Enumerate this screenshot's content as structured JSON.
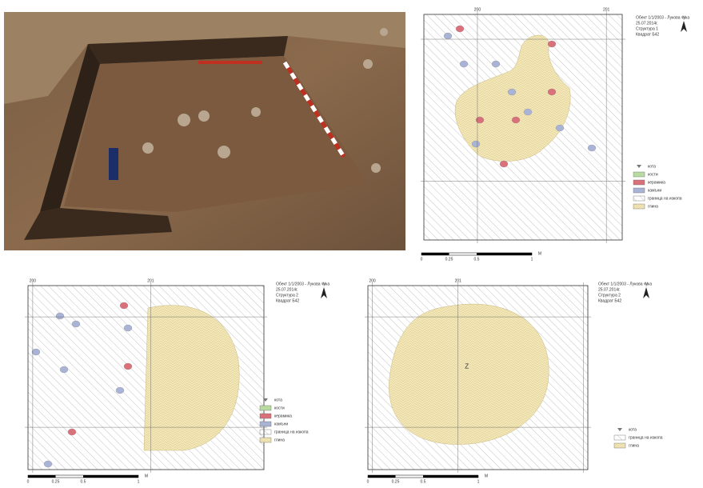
{
  "plans": [
    {
      "header": [
        "Обект 1/1/2003 - Лукова чука",
        "25.07.2014г.",
        "Структура 1",
        "Квадрат Б42"
      ],
      "grid_labels": [
        "200",
        "201"
      ],
      "north": "N",
      "legend": [
        "кота",
        "кости",
        "керамика",
        "камъни",
        "граница на изкопа",
        "глина"
      ],
      "scale": [
        "0",
        "0.25",
        "0.5",
        "1",
        "М"
      ]
    },
    {
      "header": [
        "Обект 1/1/2003 - Лукова чука",
        "25.07.2014г.",
        "Структура 2",
        "Квадрат Б42"
      ],
      "grid_labels": [
        "200",
        "201"
      ],
      "north": "N",
      "legend": [
        "кота",
        "кости",
        "керамика",
        "камъни",
        "граница на изкопа",
        "глина"
      ],
      "scale": [
        "0",
        "0.25",
        "0.5",
        "1",
        "М"
      ]
    },
    {
      "header": [
        "Обект 1/1/2003 - Лукова чука",
        "25.07.2014г.",
        "Структура 2",
        "Квадрат Б42"
      ],
      "grid_labels": [
        "200",
        "201"
      ],
      "north": "N",
      "center_label": "Z",
      "legend": [
        "кота",
        "граница на изкопа",
        "глина"
      ],
      "scale": [
        "0",
        "0.25",
        "0.5",
        "1",
        "М"
      ]
    }
  ]
}
